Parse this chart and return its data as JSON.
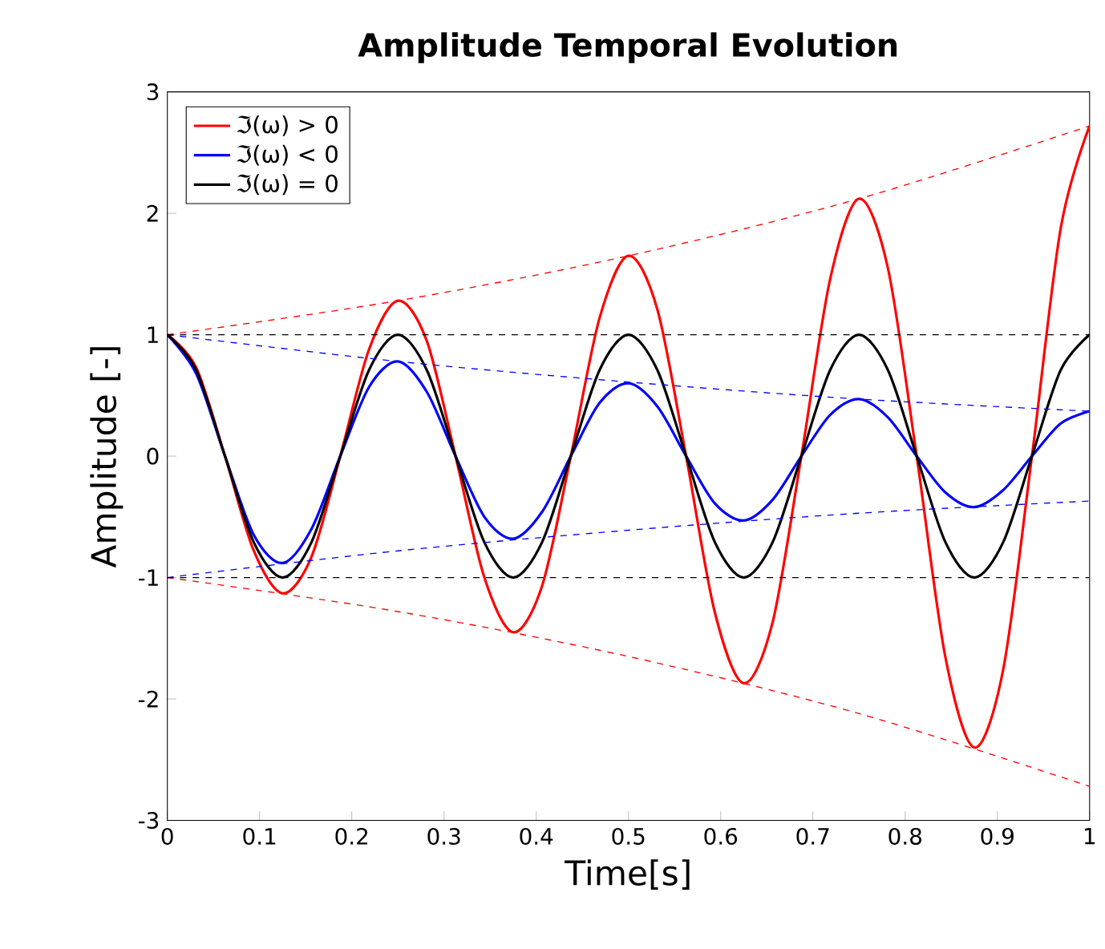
{
  "chart_data": {
    "type": "line",
    "title": "Amplitude Temporal Evolution",
    "xlabel": "Time[s]",
    "ylabel": "Amplitude [-]",
    "xlim": [
      0,
      1
    ],
    "ylim": [
      -3,
      3
    ],
    "xticks": [
      0,
      0.1,
      0.2,
      0.3,
      0.4,
      0.5,
      0.6,
      0.7,
      0.8,
      0.9,
      1
    ],
    "yticks": [
      -3,
      -2,
      -1,
      0,
      1,
      2,
      3
    ],
    "legend": "top left",
    "grid": false,
    "marker": "none",
    "x": [
      0,
      0.03125,
      0.0625,
      0.09375,
      0.125,
      0.15625,
      0.1875,
      0.21875,
      0.25,
      0.28125,
      0.3125,
      0.34375,
      0.375,
      0.40625,
      0.4375,
      0.46875,
      0.5,
      0.53125,
      0.5625,
      0.59375,
      0.625,
      0.65625,
      0.6875,
      0.71875,
      0.75,
      0.78125,
      0.8125,
      0.84375,
      0.875,
      0.90625,
      0.9375,
      0.96875,
      1
    ],
    "series": [
      {
        "name": "ℑ(ω) > 0",
        "color": "#ff0000",
        "line_style": "solid",
        "values": [
          1,
          0.73,
          0,
          -0.78,
          -1.13,
          -0.83,
          0,
          0.88,
          1.28,
          0.95,
          0,
          -1.0,
          -1.45,
          -1.07,
          0,
          1.14,
          1.65,
          1.21,
          0,
          -1.29,
          -1.87,
          -1.37,
          0,
          1.46,
          2.12,
          1.55,
          0,
          -1.66,
          -2.4,
          -1.76,
          0,
          1.88,
          2.72
        ]
      },
      {
        "name": "ℑ(ω) < 0",
        "color": "#0000ff",
        "line_style": "solid",
        "values": [
          1,
          0.68,
          0,
          -0.65,
          -0.88,
          -0.6,
          0,
          0.57,
          0.78,
          0.53,
          0,
          -0.5,
          -0.68,
          -0.46,
          0,
          0.44,
          0.6,
          0.41,
          0,
          -0.39,
          -0.53,
          -0.36,
          0,
          0.34,
          0.47,
          0.32,
          0,
          -0.3,
          -0.42,
          -0.28,
          0,
          0.27,
          0.37
        ]
      },
      {
        "name": "ℑ(ω) = 0",
        "color": "#000000",
        "line_style": "solid",
        "values": [
          1,
          0.71,
          0,
          -0.71,
          -1,
          -0.71,
          0,
          0.71,
          1,
          0.71,
          0,
          -0.71,
          -1,
          -0.71,
          0,
          0.71,
          1,
          0.71,
          0,
          -0.71,
          -1,
          -0.71,
          0,
          0.71,
          1,
          0.71,
          0,
          -0.71,
          -1,
          -0.71,
          0,
          0.71,
          1
        ]
      },
      {
        "color": "#ff0000",
        "line_style": "dashed",
        "x": [
          0,
          0.25,
          0.5,
          0.75,
          1
        ],
        "values": [
          1,
          1.28,
          1.65,
          2.12,
          2.72
        ]
      },
      {
        "color": "#ff0000",
        "line_style": "dashed",
        "x": [
          0,
          0.25,
          0.5,
          0.75,
          1
        ],
        "values": [
          -1,
          -1.28,
          -1.65,
          -2.12,
          -2.72
        ]
      },
      {
        "color": "#0000ff",
        "line_style": "dashed",
        "x": [
          0,
          0.25,
          0.5,
          0.75,
          1
        ],
        "values": [
          1,
          0.78,
          0.61,
          0.47,
          0.37
        ]
      },
      {
        "color": "#0000ff",
        "line_style": "dashed",
        "x": [
          0,
          0.25,
          0.5,
          0.75,
          1
        ],
        "values": [
          -1,
          -0.78,
          -0.61,
          -0.47,
          -0.37
        ]
      },
      {
        "color": "#000000",
        "line_style": "dashed",
        "x": [
          0,
          1
        ],
        "values": [
          1,
          1
        ]
      },
      {
        "color": "#000000",
        "line_style": "dashed",
        "x": [
          0,
          1
        ],
        "values": [
          -1,
          -1
        ]
      }
    ]
  }
}
